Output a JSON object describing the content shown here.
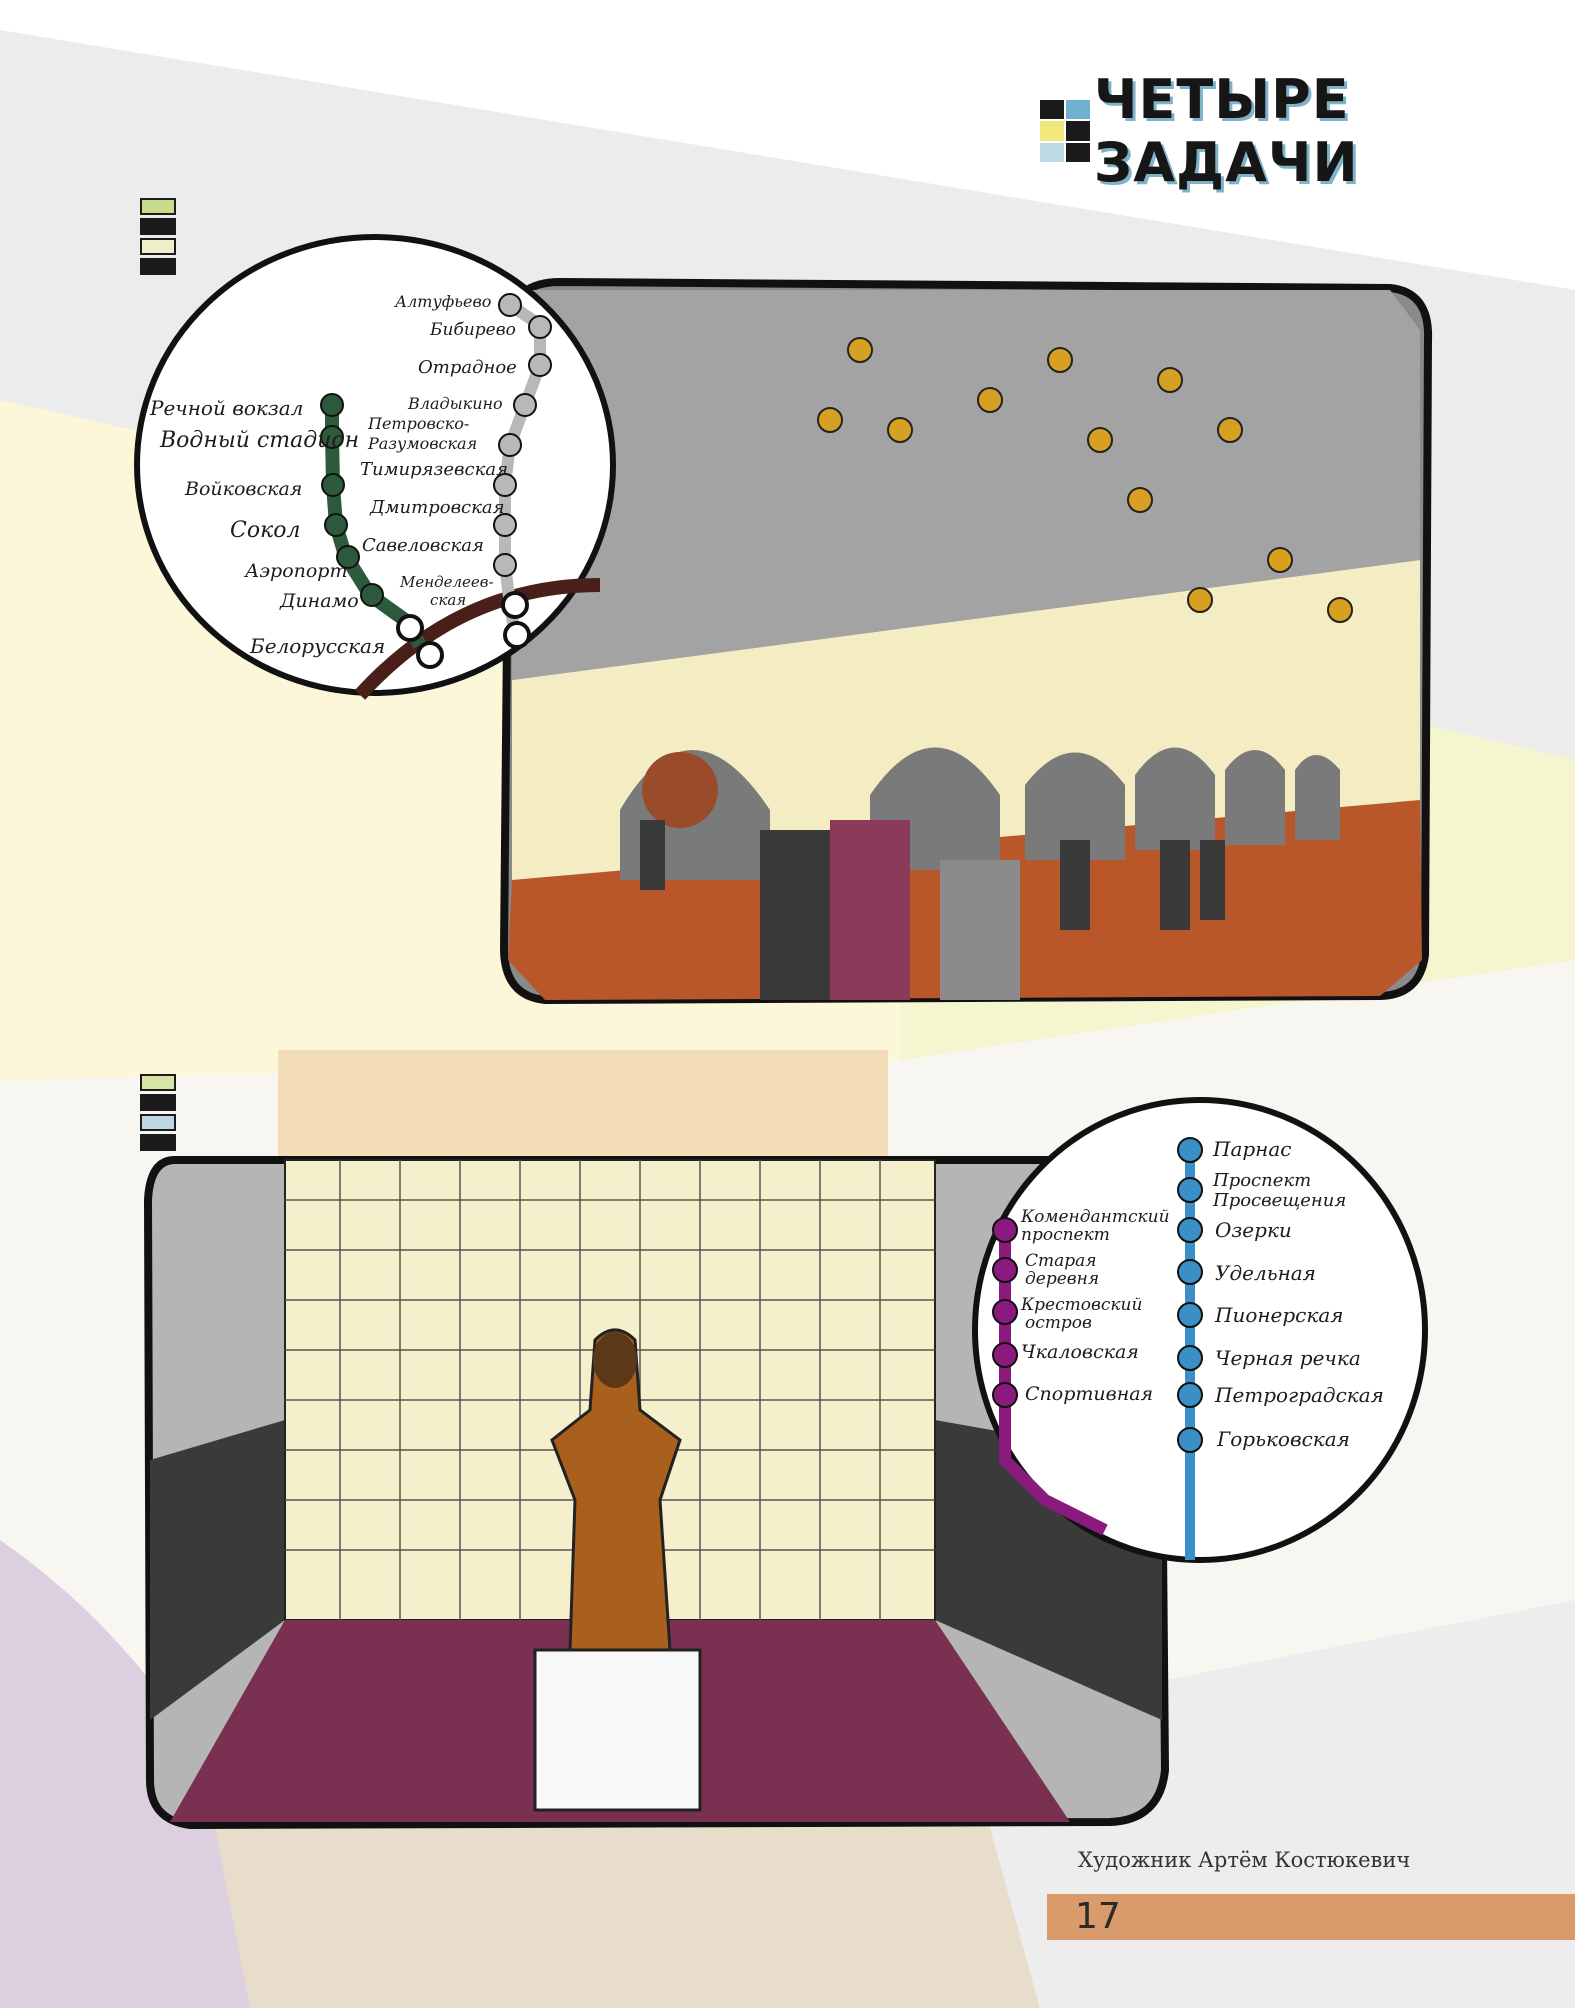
{
  "header": {
    "title": "ЧЕТЫРЕ ЗАДАЧИ"
  },
  "puzzle3": {
    "green_line": [
      "Речной вокзал",
      "Водный стадион",
      "Войковская",
      "Сокол",
      "Аэропорт",
      "Динамо",
      "Белорусская"
    ],
    "grey_line": [
      "Алтуфьево",
      "Бибирево",
      "Отрадное",
      "Владыкино",
      "Петровско-",
      "Разумовская",
      "Тимирязевская",
      "Дмитровская",
      "Савеловская",
      "Менделеев-",
      "ская"
    ]
  },
  "puzzle4": {
    "purple_line": [
      "Комендантский",
      "проспект",
      "Старая",
      "деревня",
      "Крестовский",
      "остров",
      "Чкаловская",
      "Спортивная"
    ],
    "blue_line": [
      "Парнас",
      "Проспект",
      "Просвещения",
      "Озерки",
      "Удельная",
      "Пионерская",
      "Черная речка",
      "Петроградская",
      "Горьковская"
    ]
  },
  "footer": {
    "credit": "Художник Артём Костюкевич",
    "page_number": "17"
  },
  "colors": {
    "green": "#2d5a3c",
    "grey": "#b8b8b8",
    "purple": "#8b1a7e",
    "blue": "#3a8fc7",
    "page_bar": "#d99a6c"
  }
}
